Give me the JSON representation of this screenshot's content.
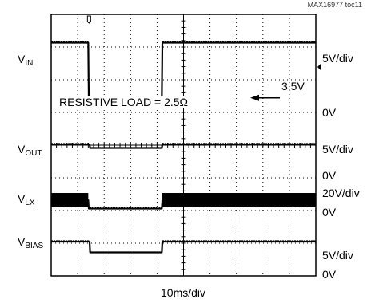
{
  "figure_id": "MAX16977 toc11",
  "annotations": {
    "resistive_load": "RESISTIVE LOAD = 2.5Ω",
    "vin_low_level": "3.5V"
  },
  "time_scale": "10ms/div",
  "colors": {
    "trace": "#000000",
    "grid": "#000000",
    "background": "#ffffff"
  },
  "chart_data": {
    "type": "line",
    "title": "",
    "xlabel": "10ms/div",
    "grid": true,
    "x_divisions": 10,
    "y_divisions": 8,
    "x_unit": "div",
    "series": [
      {
        "name_main": "V",
        "name_sub": "IN",
        "scale": "5V/div",
        "zero_label": "0V",
        "x": [
          0,
          1.4,
          1.42,
          4.18,
          4.2,
          10
        ],
        "y": [
          17.5,
          17.5,
          3.5,
          3.5,
          17.5,
          17.5
        ]
      },
      {
        "name_main": "V",
        "name_sub": "OUT",
        "scale": "5V/div",
        "zero_label": "0V",
        "x": [
          0,
          1.45,
          1.47,
          4.18,
          4.2,
          10
        ],
        "y": [
          5,
          5,
          3.5,
          3.5,
          5,
          5
        ]
      },
      {
        "name_main": "V",
        "name_sub": "LX",
        "scale": "20V/div",
        "zero_label": "0V",
        "x": [
          0,
          1.4,
          1.42,
          4.18,
          4.2,
          10
        ],
        "y": [
          14,
          14,
          3.5,
          3.5,
          14,
          14
        ]
      },
      {
        "name_main": "V",
        "name_sub": "BIAS",
        "scale": "5V/div",
        "zero_label": "0V",
        "x": [
          0,
          1.45,
          1.47,
          4.18,
          4.2,
          10
        ],
        "y": [
          5,
          5,
          0.5,
          0.5,
          5,
          5
        ]
      }
    ]
  }
}
